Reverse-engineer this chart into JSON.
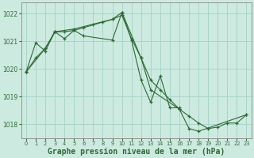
{
  "background_color": "#cdeae0",
  "grid_color": "#aad4c8",
  "line_color": "#2d6a35",
  "xlabel": "Graphe pression niveau de la mer (hPa)",
  "xlabel_fontsize": 7.0,
  "ylim": [
    1017.5,
    1022.4
  ],
  "xlim": [
    -0.5,
    23.5
  ],
  "yticks": [
    1018,
    1019,
    1020,
    1021,
    1022
  ],
  "xticks": [
    0,
    1,
    2,
    3,
    4,
    5,
    6,
    7,
    8,
    9,
    10,
    11,
    12,
    13,
    14,
    15,
    16,
    17,
    18,
    19,
    20,
    21,
    22,
    23
  ],
  "series1_x": [
    0,
    1,
    2,
    3,
    4,
    5,
    6,
    7,
    8,
    9,
    10,
    11,
    12,
    13,
    14,
    15,
    16,
    17,
    18,
    19,
    20,
    21,
    22,
    23
  ],
  "series1_y": [
    1019.9,
    1020.4,
    1020.75,
    1021.35,
    1021.35,
    1021.4,
    1021.5,
    1021.6,
    1021.7,
    1021.8,
    1021.95,
    1021.1,
    1020.4,
    1019.6,
    1019.25,
    1018.9,
    1018.55,
    1018.3,
    1018.05,
    1017.85,
    1017.9,
    1018.05,
    1018.05,
    1018.35
  ],
  "series2_x": [
    0,
    1,
    2,
    3,
    4,
    5,
    6,
    9,
    10,
    11,
    12,
    13,
    14,
    15,
    16
  ],
  "series2_y": [
    1019.9,
    1020.95,
    1020.65,
    1021.35,
    1021.1,
    1021.4,
    1021.2,
    1021.05,
    1022.05,
    1021.05,
    1019.6,
    1018.8,
    1019.75,
    1018.6,
    1018.6
  ],
  "series3_x": [
    0,
    2,
    3,
    5,
    9,
    10,
    12,
    13,
    16,
    17,
    18,
    23
  ],
  "series3_y": [
    1019.9,
    1020.75,
    1021.35,
    1021.45,
    1021.8,
    1022.05,
    1020.4,
    1019.25,
    1018.55,
    1017.85,
    1017.75,
    1018.35
  ]
}
